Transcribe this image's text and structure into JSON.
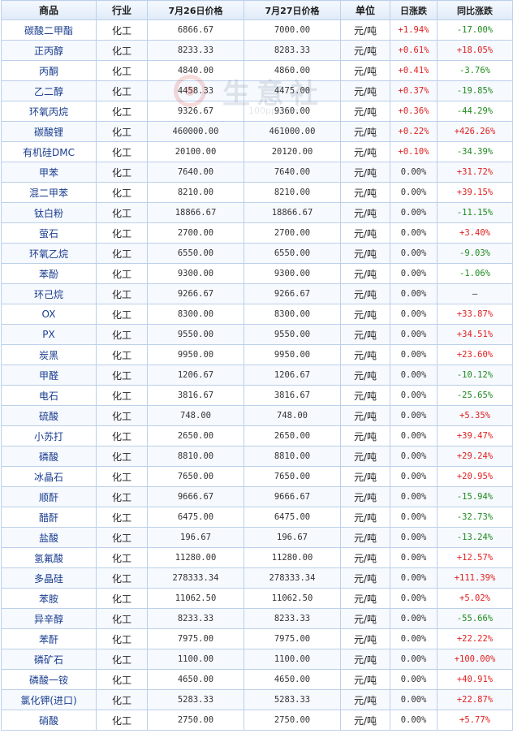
{
  "table": {
    "headers": [
      "商品",
      "行业",
      "7月26日价格",
      "7月27日价格",
      "单位",
      "日涨跌",
      "同比涨跌"
    ],
    "rows": [
      {
        "name": "碳酸二甲酯",
        "industry": "化工",
        "price_26": "6866.67",
        "price_27": "7000.00",
        "unit": "元/吨",
        "daily": "+1.94%",
        "daily_dir": "up",
        "yoy": "-17.00%",
        "yoy_dir": "down"
      },
      {
        "name": "正丙醇",
        "industry": "化工",
        "price_26": "8233.33",
        "price_27": "8283.33",
        "unit": "元/吨",
        "daily": "+0.61%",
        "daily_dir": "up",
        "yoy": "+18.05%",
        "yoy_dir": "up"
      },
      {
        "name": "丙酮",
        "industry": "化工",
        "price_26": "4840.00",
        "price_27": "4860.00",
        "unit": "元/吨",
        "daily": "+0.41%",
        "daily_dir": "up",
        "yoy": "-3.76%",
        "yoy_dir": "down"
      },
      {
        "name": "乙二醇",
        "industry": "化工",
        "price_26": "4458.33",
        "price_27": "4475.00",
        "unit": "元/吨",
        "daily": "+0.37%",
        "daily_dir": "up",
        "yoy": "-19.85%",
        "yoy_dir": "down"
      },
      {
        "name": "环氧丙烷",
        "industry": "化工",
        "price_26": "9326.67",
        "price_27": "9360.00",
        "unit": "元/吨",
        "daily": "+0.36%",
        "daily_dir": "up",
        "yoy": "-44.29%",
        "yoy_dir": "down"
      },
      {
        "name": "碳酸锂",
        "industry": "化工",
        "price_26": "460000.00",
        "price_27": "461000.00",
        "unit": "元/吨",
        "daily": "+0.22%",
        "daily_dir": "up",
        "yoy": "+426.26%",
        "yoy_dir": "up"
      },
      {
        "name": "有机硅DMC",
        "industry": "化工",
        "price_26": "20100.00",
        "price_27": "20120.00",
        "unit": "元/吨",
        "daily": "+0.10%",
        "daily_dir": "up",
        "yoy": "-34.39%",
        "yoy_dir": "down"
      },
      {
        "name": "甲苯",
        "industry": "化工",
        "price_26": "7640.00",
        "price_27": "7640.00",
        "unit": "元/吨",
        "daily": "0.00%",
        "daily_dir": "flat",
        "yoy": "+31.72%",
        "yoy_dir": "up"
      },
      {
        "name": "混二甲苯",
        "industry": "化工",
        "price_26": "8210.00",
        "price_27": "8210.00",
        "unit": "元/吨",
        "daily": "0.00%",
        "daily_dir": "flat",
        "yoy": "+39.15%",
        "yoy_dir": "up"
      },
      {
        "name": "钛白粉",
        "industry": "化工",
        "price_26": "18866.67",
        "price_27": "18866.67",
        "unit": "元/吨",
        "daily": "0.00%",
        "daily_dir": "flat",
        "yoy": "-11.15%",
        "yoy_dir": "down"
      },
      {
        "name": "萤石",
        "industry": "化工",
        "price_26": "2700.00",
        "price_27": "2700.00",
        "unit": "元/吨",
        "daily": "0.00%",
        "daily_dir": "flat",
        "yoy": "+3.40%",
        "yoy_dir": "up"
      },
      {
        "name": "环氧乙烷",
        "industry": "化工",
        "price_26": "6550.00",
        "price_27": "6550.00",
        "unit": "元/吨",
        "daily": "0.00%",
        "daily_dir": "flat",
        "yoy": "-9.03%",
        "yoy_dir": "down"
      },
      {
        "name": "苯酚",
        "industry": "化工",
        "price_26": "9300.00",
        "price_27": "9300.00",
        "unit": "元/吨",
        "daily": "0.00%",
        "daily_dir": "flat",
        "yoy": "-1.06%",
        "yoy_dir": "down"
      },
      {
        "name": "环己烷",
        "industry": "化工",
        "price_26": "9266.67",
        "price_27": "9266.67",
        "unit": "元/吨",
        "daily": "0.00%",
        "daily_dir": "flat",
        "yoy": "—",
        "yoy_dir": "flat"
      },
      {
        "name": "OX",
        "industry": "化工",
        "price_26": "8300.00",
        "price_27": "8300.00",
        "unit": "元/吨",
        "daily": "0.00%",
        "daily_dir": "flat",
        "yoy": "+33.87%",
        "yoy_dir": "up"
      },
      {
        "name": "PX",
        "industry": "化工",
        "price_26": "9550.00",
        "price_27": "9550.00",
        "unit": "元/吨",
        "daily": "0.00%",
        "daily_dir": "flat",
        "yoy": "+34.51%",
        "yoy_dir": "up"
      },
      {
        "name": "炭黑",
        "industry": "化工",
        "price_26": "9950.00",
        "price_27": "9950.00",
        "unit": "元/吨",
        "daily": "0.00%",
        "daily_dir": "flat",
        "yoy": "+23.60%",
        "yoy_dir": "up"
      },
      {
        "name": "甲醛",
        "industry": "化工",
        "price_26": "1206.67",
        "price_27": "1206.67",
        "unit": "元/吨",
        "daily": "0.00%",
        "daily_dir": "flat",
        "yoy": "-10.12%",
        "yoy_dir": "down"
      },
      {
        "name": "电石",
        "industry": "化工",
        "price_26": "3816.67",
        "price_27": "3816.67",
        "unit": "元/吨",
        "daily": "0.00%",
        "daily_dir": "flat",
        "yoy": "-25.65%",
        "yoy_dir": "down"
      },
      {
        "name": "硫酸",
        "industry": "化工",
        "price_26": "748.00",
        "price_27": "748.00",
        "unit": "元/吨",
        "daily": "0.00%",
        "daily_dir": "flat",
        "yoy": "+5.35%",
        "yoy_dir": "up"
      },
      {
        "name": "小苏打",
        "industry": "化工",
        "price_26": "2650.00",
        "price_27": "2650.00",
        "unit": "元/吨",
        "daily": "0.00%",
        "daily_dir": "flat",
        "yoy": "+39.47%",
        "yoy_dir": "up"
      },
      {
        "name": "磷酸",
        "industry": "化工",
        "price_26": "8810.00",
        "price_27": "8810.00",
        "unit": "元/吨",
        "daily": "0.00%",
        "daily_dir": "flat",
        "yoy": "+29.24%",
        "yoy_dir": "up"
      },
      {
        "name": "冰晶石",
        "industry": "化工",
        "price_26": "7650.00",
        "price_27": "7650.00",
        "unit": "元/吨",
        "daily": "0.00%",
        "daily_dir": "flat",
        "yoy": "+20.95%",
        "yoy_dir": "up"
      },
      {
        "name": "顺酐",
        "industry": "化工",
        "price_26": "9666.67",
        "price_27": "9666.67",
        "unit": "元/吨",
        "daily": "0.00%",
        "daily_dir": "flat",
        "yoy": "-15.94%",
        "yoy_dir": "down"
      },
      {
        "name": "醋酐",
        "industry": "化工",
        "price_26": "6475.00",
        "price_27": "6475.00",
        "unit": "元/吨",
        "daily": "0.00%",
        "daily_dir": "flat",
        "yoy": "-32.73%",
        "yoy_dir": "down"
      },
      {
        "name": "盐酸",
        "industry": "化工",
        "price_26": "196.67",
        "price_27": "196.67",
        "unit": "元/吨",
        "daily": "0.00%",
        "daily_dir": "flat",
        "yoy": "-13.24%",
        "yoy_dir": "down"
      },
      {
        "name": "氢氟酸",
        "industry": "化工",
        "price_26": "11280.00",
        "price_27": "11280.00",
        "unit": "元/吨",
        "daily": "0.00%",
        "daily_dir": "flat",
        "yoy": "+12.57%",
        "yoy_dir": "up"
      },
      {
        "name": "多晶硅",
        "industry": "化工",
        "price_26": "278333.34",
        "price_27": "278333.34",
        "unit": "元/吨",
        "daily": "0.00%",
        "daily_dir": "flat",
        "yoy": "+111.39%",
        "yoy_dir": "up"
      },
      {
        "name": "苯胺",
        "industry": "化工",
        "price_26": "11062.50",
        "price_27": "11062.50",
        "unit": "元/吨",
        "daily": "0.00%",
        "daily_dir": "flat",
        "yoy": "+5.02%",
        "yoy_dir": "up"
      },
      {
        "name": "异辛醇",
        "industry": "化工",
        "price_26": "8233.33",
        "price_27": "8233.33",
        "unit": "元/吨",
        "daily": "0.00%",
        "daily_dir": "flat",
        "yoy": "-55.66%",
        "yoy_dir": "down"
      },
      {
        "name": "苯酐",
        "industry": "化工",
        "price_26": "7975.00",
        "price_27": "7975.00",
        "unit": "元/吨",
        "daily": "0.00%",
        "daily_dir": "flat",
        "yoy": "+22.22%",
        "yoy_dir": "up"
      },
      {
        "name": "磷矿石",
        "industry": "化工",
        "price_26": "1100.00",
        "price_27": "1100.00",
        "unit": "元/吨",
        "daily": "0.00%",
        "daily_dir": "flat",
        "yoy": "+100.00%",
        "yoy_dir": "up"
      },
      {
        "name": "磷酸一铵",
        "industry": "化工",
        "price_26": "4650.00",
        "price_27": "4650.00",
        "unit": "元/吨",
        "daily": "0.00%",
        "daily_dir": "flat",
        "yoy": "+40.91%",
        "yoy_dir": "up"
      },
      {
        "name": "氯化钾(进口)",
        "industry": "化工",
        "price_26": "5283.33",
        "price_27": "5283.33",
        "unit": "元/吨",
        "daily": "0.00%",
        "daily_dir": "flat",
        "yoy": "+22.87%",
        "yoy_dir": "up"
      },
      {
        "name": "硝酸",
        "industry": "化工",
        "price_26": "2750.00",
        "price_27": "2750.00",
        "unit": "元/吨",
        "daily": "0.00%",
        "daily_dir": "flat",
        "yoy": "+5.77%",
        "yoy_dir": "up"
      }
    ]
  },
  "watermark": {
    "text": "生意社",
    "url": "100ppi.com",
    "logo_color": "#d02020",
    "icon": "watermark-logo-icon"
  },
  "colors": {
    "up": "#e02020",
    "down": "#1f8a1f",
    "link": "#1a3d8f",
    "border": "#bcd0ea",
    "header_bg": "#dfeaf8"
  }
}
